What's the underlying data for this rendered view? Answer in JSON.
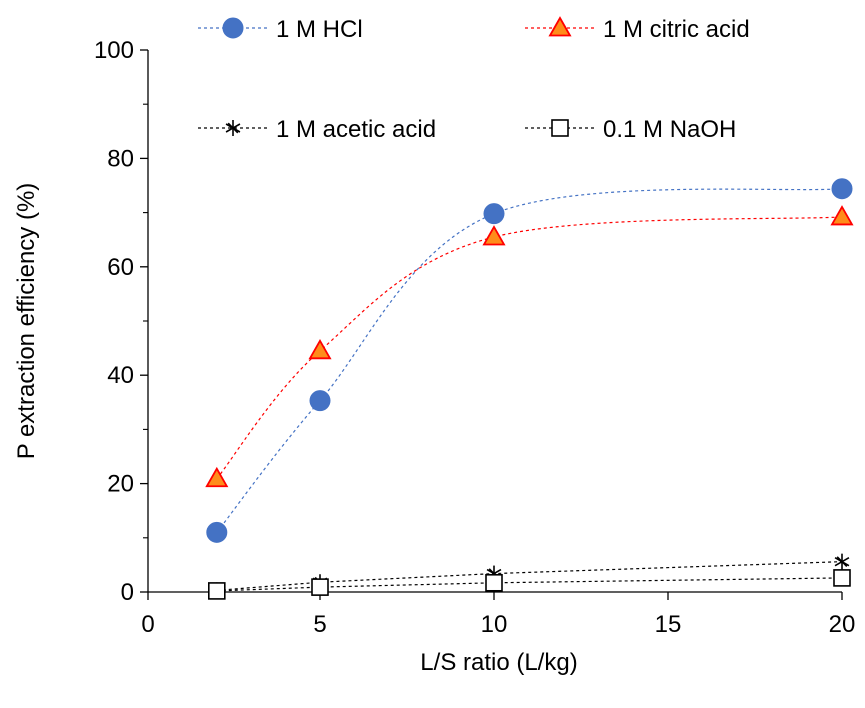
{
  "chart_data": {
    "type": "line",
    "title": "",
    "xlabel": "L/S ratio (L/kg)",
    "ylabel": "P extraction efficiency (%)",
    "xlim": [
      0,
      20
    ],
    "ylim": [
      0,
      100
    ],
    "x_tick_values": [
      0,
      5,
      10,
      15,
      20
    ],
    "x_tick_labels": [
      "0",
      "5",
      "10",
      "15",
      "20"
    ],
    "y_tick_values": [
      0,
      20,
      40,
      60,
      80,
      100
    ],
    "y_tick_labels": [
      "0",
      "20",
      "40",
      "60",
      "80",
      "100"
    ],
    "x_scale": "segmented: 0–5 and 5–20 drawn at equal spacing per tick",
    "grid": false,
    "legend_position": "top",
    "x": [
      2,
      5,
      10,
      20
    ],
    "series": [
      {
        "name": "1 M HCl",
        "values": [
          11.0,
          35.3,
          69.8,
          74.4
        ],
        "color": "#4472C4",
        "marker": "circle",
        "line": "dashed"
      },
      {
        "name": "1 M citric acid",
        "values": [
          20.9,
          44.5,
          65.5,
          69.2
        ],
        "color": "#FF0000",
        "fill": "#FF8C1A",
        "marker": "triangle",
        "line": "dashed"
      },
      {
        "name": "1 M acetic acid",
        "values": [
          0.3,
          1.8,
          3.4,
          5.6
        ],
        "color": "#000000",
        "marker": "asterisk",
        "line": "dashed"
      },
      {
        "name": "0.1 M NaOH",
        "values": [
          0.2,
          0.9,
          1.7,
          2.6
        ],
        "color": "#000000",
        "marker": "square-open",
        "line": "dashed"
      }
    ]
  }
}
